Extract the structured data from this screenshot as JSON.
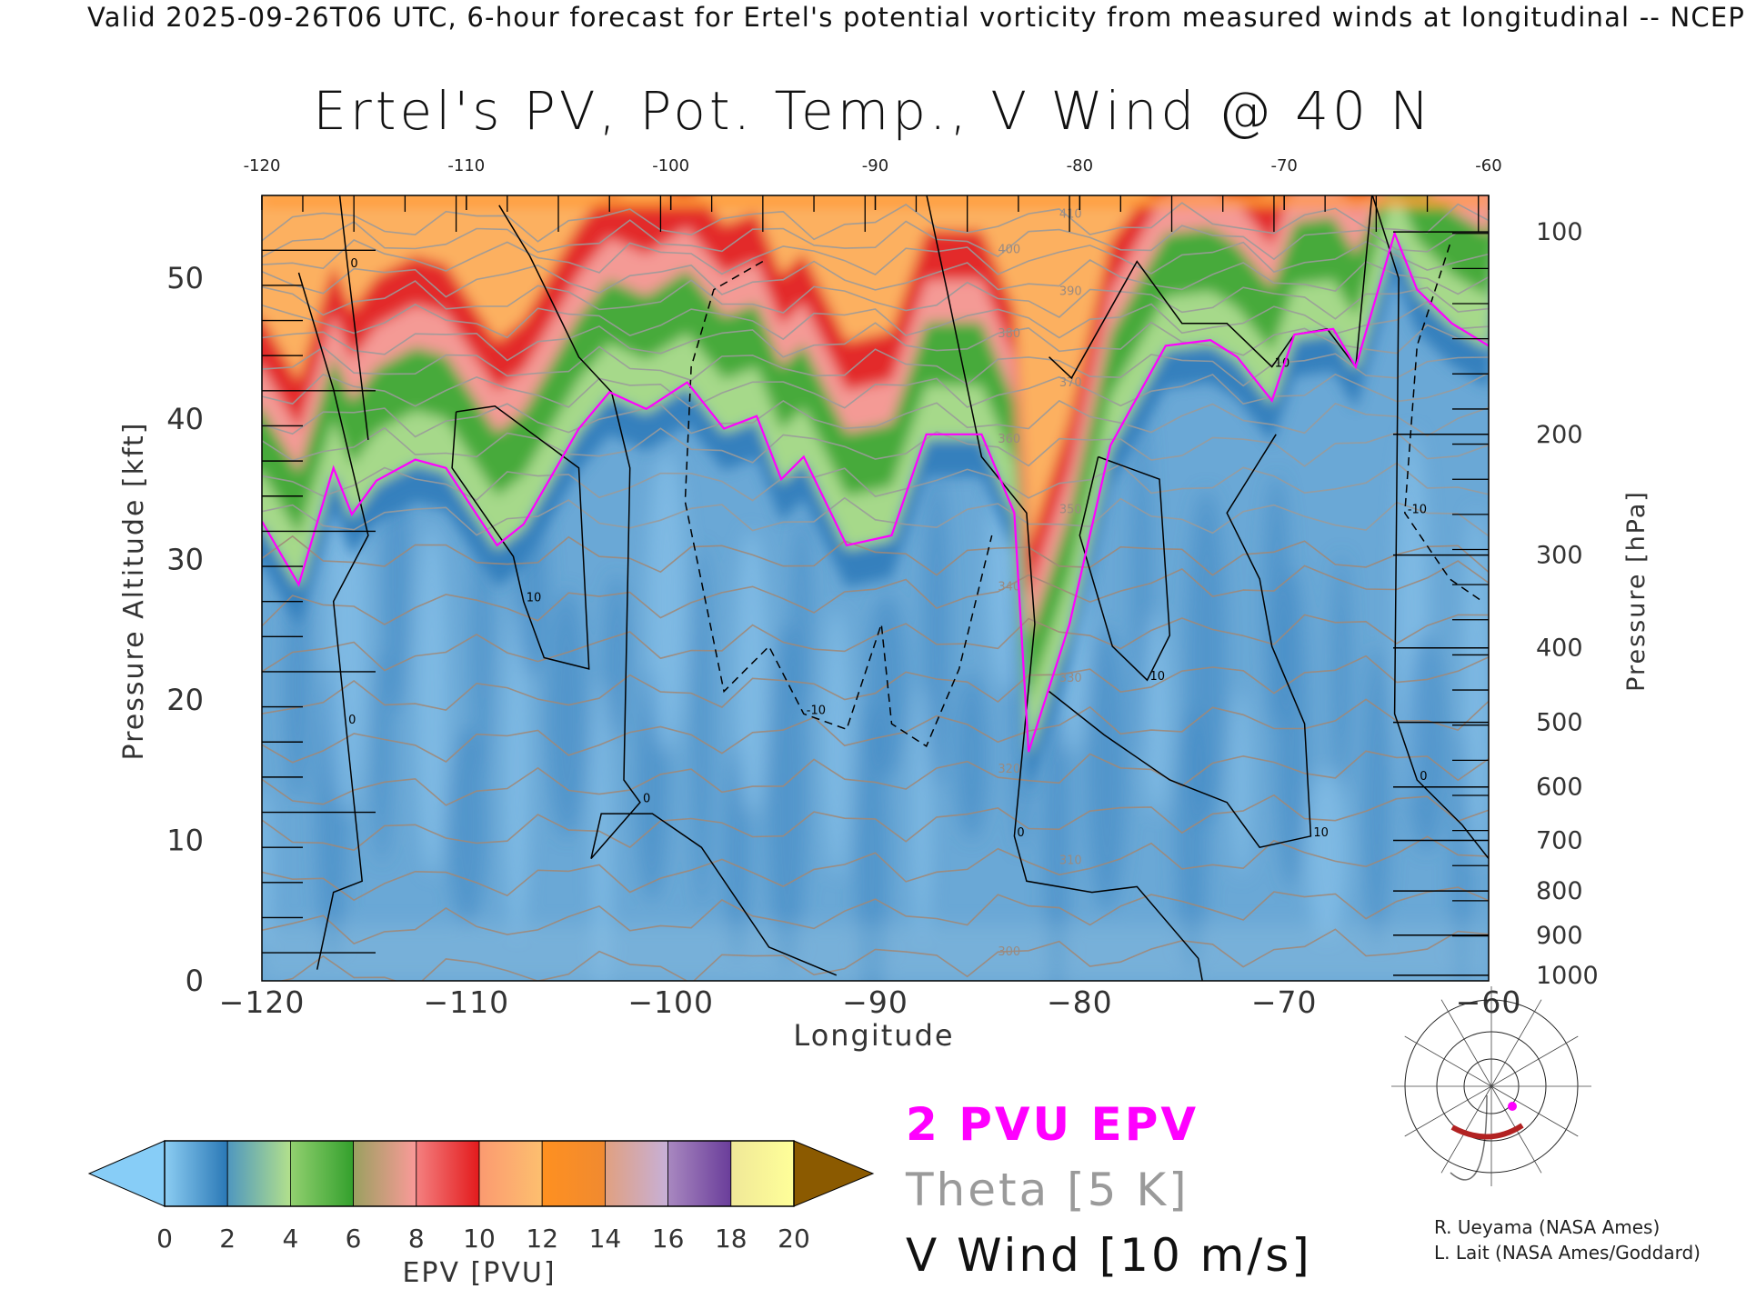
{
  "header": {
    "top_title": "Valid 2025-09-26T06 UTC, 6-hour forecast for Ertel's potential vorticity from measured winds at longitudinal -- NCEP",
    "main_title": "Ertel's PV, Pot. Temp., V Wind @ 40 N"
  },
  "legend": {
    "pv_label": "2 PVU EPV",
    "theta_label": "Theta [5 K]",
    "wind_label": "V Wind [10 m/s]",
    "pv_color": "#ff00ff",
    "theta_color": "#9a9a9a",
    "wind_color": "#111111"
  },
  "credits": {
    "line1": "R. Ueyama (NASA Ames)",
    "line2": "L. Lait (NASA Ames/Goddard)"
  },
  "chart_data": {
    "type": "heatmap",
    "title": "Ertel's PV, Pot. Temp., V Wind @ 40 N",
    "xlabel": "Longitude",
    "ylabel": "Pressure Altitude [kft]",
    "y2label": "Pressure [hPa]",
    "xlim": [
      -120,
      -60
    ],
    "ylim": [
      0,
      55.9
    ],
    "x_ticks": [
      -120,
      -110,
      -100,
      -90,
      -80,
      -70,
      -60
    ],
    "x_tick_labels": [
      "−120",
      "−110",
      "−100",
      "−90",
      "−80",
      "−70",
      "−60"
    ],
    "top_tick_labels": [
      "-120",
      "-110",
      "-100",
      "-90",
      "-80",
      "-70",
      "-60"
    ],
    "y_ticks": [
      0,
      10,
      20,
      30,
      40,
      50
    ],
    "y_tick_labels": [
      "0",
      "10",
      "20",
      "30",
      "40",
      "50"
    ],
    "pressure_ticks": [
      {
        "hPa": "100",
        "kft": 53.3
      },
      {
        "hPa": "200",
        "kft": 38.9
      },
      {
        "hPa": "300",
        "kft": 30.3
      },
      {
        "hPa": "400",
        "kft": 23.7
      },
      {
        "hPa": "500",
        "kft": 18.4
      },
      {
        "hPa": "600",
        "kft": 13.8
      },
      {
        "hPa": "700",
        "kft": 10.0
      },
      {
        "hPa": "800",
        "kft": 6.4
      },
      {
        "hPa": "900",
        "kft": 3.25
      },
      {
        "hPa": "1000",
        "kft": 0.4
      }
    ],
    "pv2_contour": [
      [
        -120,
        32.7
      ],
      [
        -118.2,
        28.2
      ],
      [
        -116.5,
        36.5
      ],
      [
        -115.6,
        33.2
      ],
      [
        -114.4,
        35.6
      ],
      [
        -112.5,
        37.1
      ],
      [
        -111,
        36.5
      ],
      [
        -108.5,
        31
      ],
      [
        -107.2,
        32.5
      ],
      [
        -104.5,
        39.3
      ],
      [
        -103,
        41.9
      ],
      [
        -101.2,
        40.7
      ],
      [
        -99.2,
        42.6
      ],
      [
        -97.4,
        39.3
      ],
      [
        -95.8,
        40.2
      ],
      [
        -94.6,
        35.7
      ],
      [
        -93.5,
        37.3
      ],
      [
        -91.4,
        31
      ],
      [
        -89.2,
        31.7
      ],
      [
        -87.5,
        38.9
      ],
      [
        -84.8,
        38.9
      ],
      [
        -83.2,
        33.3
      ],
      [
        -82.5,
        16.3
      ],
      [
        -80.5,
        25.4
      ],
      [
        -78.5,
        38.1
      ],
      [
        -75.8,
        45.2
      ],
      [
        -73.6,
        45.6
      ],
      [
        -72.3,
        44.4
      ],
      [
        -70.6,
        41.3
      ],
      [
        -69.5,
        46
      ],
      [
        -67.6,
        46.4
      ],
      [
        -66.5,
        43.7
      ],
      [
        -64.6,
        53.2
      ],
      [
        -63.5,
        49.2
      ],
      [
        -61.8,
        46.8
      ],
      [
        -60,
        45.2
      ]
    ],
    "theta_levels": [
      {
        "K": 300,
        "kft": 1.5
      },
      {
        "K": 310,
        "kft": 8
      },
      {
        "K": 320,
        "kft": 14.5
      },
      {
        "K": 330,
        "kft": 21
      },
      {
        "K": 340,
        "kft": 27.5
      },
      {
        "K": 350,
        "kft": 33
      },
      {
        "K": 360,
        "kft": 38
      },
      {
        "K": 370,
        "kft": 42
      },
      {
        "K": 380,
        "kft": 45.5
      },
      {
        "K": 390,
        "kft": 48.5
      },
      {
        "K": 400,
        "kft": 51.5
      },
      {
        "K": 410,
        "kft": 54
      }
    ],
    "theta_labels": [
      "300",
      "310",
      "320",
      "330",
      "340",
      "350",
      "360",
      "370",
      "380",
      "390",
      "400",
      "410"
    ],
    "wind_contours": [
      {
        "level": "0",
        "dashed": false,
        "points": [
          [
            -116.2,
            56
          ],
          [
            -115.8,
            50.8
          ],
          [
            -114.8,
            38.5
          ]
        ]
      },
      {
        "level": "0",
        "dashed": false,
        "points": [
          [
            -108.4,
            55.2
          ],
          [
            -106.9,
            51.6
          ],
          [
            -104.5,
            44.4
          ],
          [
            -102.9,
            41.9
          ],
          [
            -102,
            36.5
          ],
          [
            -102.3,
            14.3
          ],
          [
            -101.5,
            12.7
          ],
          [
            -103.9,
            8.7
          ],
          [
            -103.4,
            11.9
          ],
          [
            -100.9,
            11.9
          ],
          [
            -98.5,
            9.5
          ],
          [
            -95.2,
            2.4
          ],
          [
            -91.9,
            0.4
          ]
        ]
      },
      {
        "level": "-10",
        "dashed": true,
        "points": [
          [
            -95.5,
            51.2
          ],
          [
            -97.9,
            49.2
          ],
          [
            -99,
            43.7
          ],
          [
            -99.3,
            34.1
          ],
          [
            -97.4,
            20.6
          ],
          [
            -95.2,
            23.8
          ],
          [
            -93.5,
            19
          ],
          [
            -91.4,
            17.9
          ],
          [
            -89.7,
            25.4
          ],
          [
            -89.2,
            18.3
          ],
          [
            -87.5,
            16.7
          ],
          [
            -85.9,
            22.2
          ],
          [
            -84.3,
            31.7
          ]
        ]
      },
      {
        "level": "0",
        "dashed": false,
        "points": [
          [
            -87.5,
            56
          ],
          [
            -86.5,
            49.2
          ],
          [
            -84.8,
            37.3
          ],
          [
            -82.6,
            33.3
          ],
          [
            -82.2,
            25.4
          ],
          [
            -83.2,
            10.3
          ],
          [
            -82.6,
            7.1
          ],
          [
            -79.4,
            6.3
          ],
          [
            -77.2,
            6.7
          ],
          [
            -74.2,
            1.6
          ],
          [
            -74,
            0
          ]
        ]
      },
      {
        "level": "10",
        "dashed": false,
        "points": [
          [
            -81.5,
            44.4
          ],
          [
            -80.4,
            42.9
          ],
          [
            -77.2,
            51.2
          ],
          [
            -75,
            46.8
          ],
          [
            -72.8,
            46.8
          ],
          [
            -70.6,
            43.7
          ],
          [
            -69.5,
            46
          ],
          [
            -67.9,
            46.4
          ],
          [
            -66.5,
            43.7
          ],
          [
            -65.7,
            56
          ]
        ]
      },
      {
        "level": "10",
        "dashed": false,
        "points": [
          [
            -79.1,
            37.3
          ],
          [
            -76.1,
            35.7
          ],
          [
            -75.6,
            24.6
          ],
          [
            -76.7,
            21.4
          ],
          [
            -78.4,
            23.8
          ],
          [
            -80,
            31.7
          ],
          [
            -79.1,
            37.3
          ]
        ]
      },
      {
        "level": "10",
        "dashed": false,
        "points": [
          [
            -70.4,
            38.9
          ],
          [
            -72.8,
            33.3
          ],
          [
            -71.2,
            28.6
          ],
          [
            -70.6,
            23.8
          ],
          [
            -69,
            18.3
          ],
          [
            -68.7,
            10.3
          ],
          [
            -71.2,
            9.5
          ],
          [
            -72.8,
            12.7
          ],
          [
            -75.6,
            14.3
          ],
          [
            -78.8,
            17.5
          ],
          [
            -81.5,
            20.6
          ]
        ]
      },
      {
        "level": "-10",
        "dashed": true,
        "points": [
          [
            -61.9,
            52.4
          ],
          [
            -63.5,
            45.2
          ],
          [
            -64.1,
            33.3
          ],
          [
            -61.9,
            28.6
          ],
          [
            -60.3,
            27
          ]
        ]
      },
      {
        "level": "0",
        "dashed": false,
        "points": [
          [
            -65.7,
            56
          ],
          [
            -64.4,
            50
          ],
          [
            -64.6,
            19
          ],
          [
            -63.5,
            14.3
          ],
          [
            -61.3,
            11.1
          ],
          [
            -60,
            8.7
          ]
        ]
      },
      {
        "level": "0",
        "dashed": false,
        "points": [
          [
            -118.2,
            50.4
          ],
          [
            -116.5,
            42.1
          ],
          [
            -114.8,
            31.7
          ],
          [
            -116.5,
            27
          ],
          [
            -115.9,
            18.3
          ],
          [
            -115.1,
            7.1
          ],
          [
            -116.5,
            6.3
          ],
          [
            -117.3,
            0.8
          ]
        ]
      },
      {
        "level": "10",
        "dashed": false,
        "points": [
          [
            -110.5,
            40.5
          ],
          [
            -108.6,
            40.9
          ],
          [
            -104.5,
            36.5
          ],
          [
            -104,
            22.2
          ],
          [
            -106.2,
            23
          ],
          [
            -107.2,
            27
          ],
          [
            -107.7,
            30.2
          ],
          [
            -108.8,
            32.5
          ],
          [
            -110.7,
            36.5
          ],
          [
            -110.5,
            40.5
          ]
        ]
      }
    ],
    "colorbar": {
      "label": "EPV [PVU]",
      "ticks": [
        "0",
        "2",
        "4",
        "6",
        "8",
        "10",
        "12",
        "14",
        "16",
        "18",
        "20"
      ],
      "under_color": "#87cdf7",
      "over_color": "#8b5a00",
      "segments": [
        [
          "#8ccdf2",
          "#2a78b6"
        ],
        [
          "#4f97bf",
          "#b2e08c"
        ],
        [
          "#92d070",
          "#33a02c"
        ],
        [
          "#9aa060",
          "#fb9a99"
        ],
        [
          "#f48080",
          "#e31a1c"
        ],
        [
          "#fb9a70",
          "#fdbf6f"
        ],
        [
          "#ff9020",
          "#f08a30"
        ],
        [
          "#e0a080",
          "#c7b0d8"
        ],
        [
          "#a888c0",
          "#6a3d9a"
        ],
        [
          "#f0e898",
          "#ffff99"
        ],
        [
          "#f5d070",
          "#c08040"
        ]
      ]
    }
  }
}
